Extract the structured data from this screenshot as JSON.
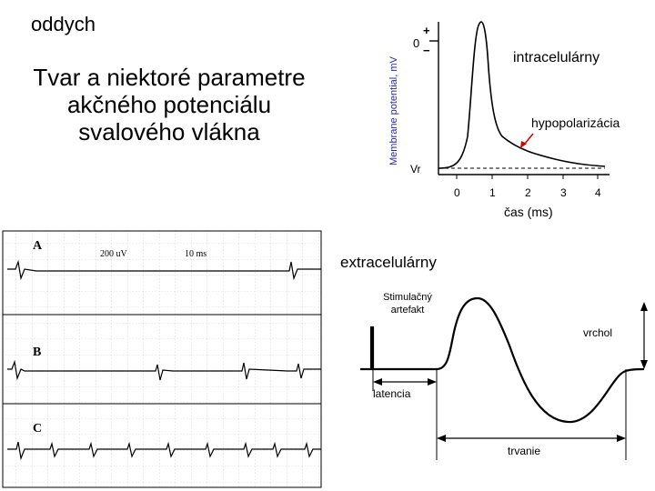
{
  "slide": {
    "corner_label": "oddych",
    "title": "Tvar a niektoré parametre akčného potenciálu svalového vlákna"
  },
  "intracellular": {
    "heading": "intracelulárny",
    "ylabel": "Membrane potential, mV",
    "y_zero": "0",
    "plus": "+",
    "minus": "−",
    "resting_label": "Vr",
    "hypopol_label": "hypopolarizácia",
    "xlabel": "čas (ms)",
    "xticks": [
      "0",
      "1",
      "2",
      "3",
      "4"
    ]
  },
  "emg": {
    "trace_labels": [
      "A",
      "B",
      "C"
    ],
    "scale_voltage": "200 uV",
    "scale_time": "10 ms"
  },
  "extracellular": {
    "heading": "extracelulárny",
    "stimulus_label_1": "Stimulačný",
    "stimulus_label_2": "artefakt",
    "peak_label": "vrchol",
    "latency_label": "latencia",
    "duration_label": "trvanie"
  }
}
